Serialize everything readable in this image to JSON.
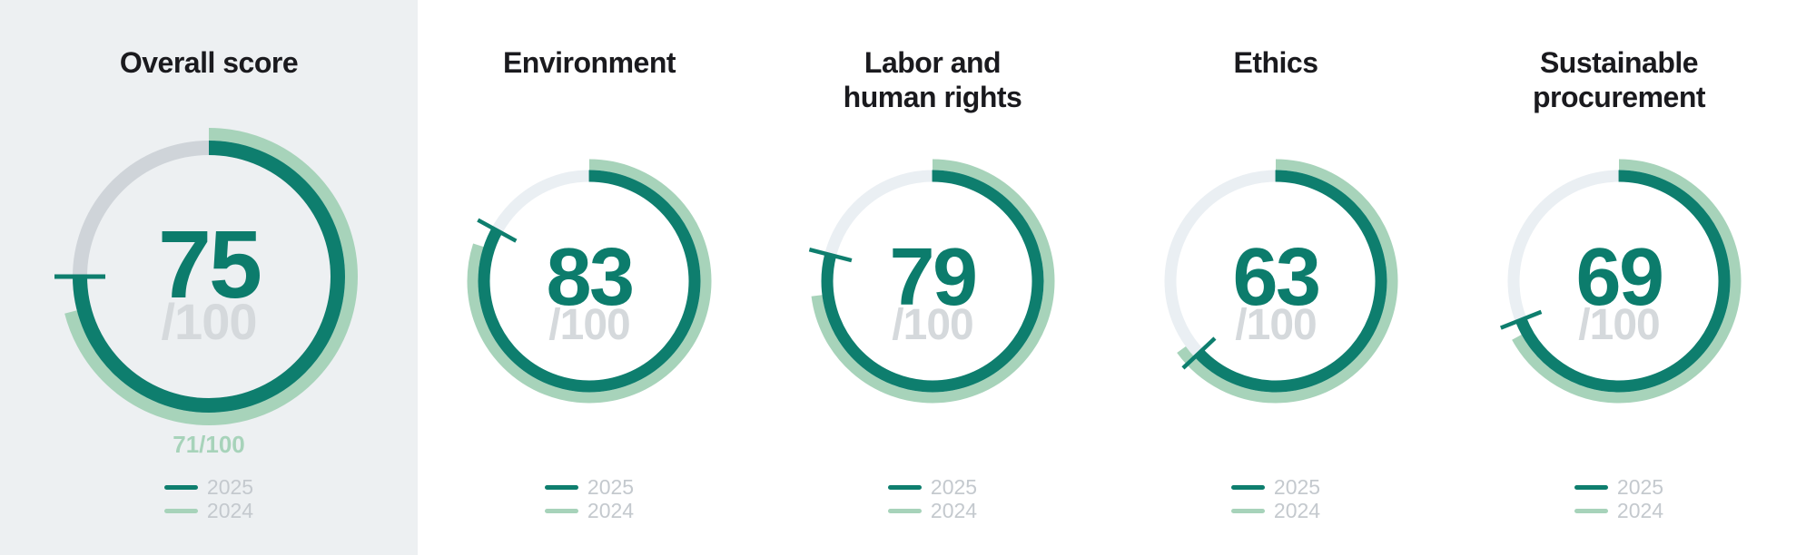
{
  "page": {
    "background": "#ffffff",
    "highlight_panel_background": "#edf0f2"
  },
  "colors": {
    "score_2025_arc": "#0e7e6e",
    "score_2024_arc": "#a7d3ba",
    "track_highlighted_panel": "#cfd4d9",
    "track_default": "#eaeff3",
    "score_number": "#0c7c6c",
    "score_denominator": "#d5d9dc",
    "previous_score_text": "#a7d3ba",
    "legend_text": "#c4c9ce",
    "title_text": "#1a1a1e"
  },
  "legend": {
    "items": [
      {
        "label": "2025",
        "color_key": "score_2025_arc"
      },
      {
        "label": "2024",
        "color_key": "score_2024_arc"
      }
    ]
  },
  "chart_data": {
    "type": "gauge",
    "max": 100,
    "direction": "clockwise",
    "start_position": "top",
    "legend_position": "bottom",
    "series_names": [
      "2025",
      "2024"
    ],
    "gauges": [
      {
        "title": "Overall score",
        "highlighted": true,
        "values": {
          "2025": 75,
          "2024": 71
        },
        "denominator": "/100",
        "previous_score_label": "71/100",
        "value_2024_estimated": false
      },
      {
        "title": "Environment",
        "highlighted": false,
        "values": {
          "2025": 83,
          "2024": 80
        },
        "denominator": "/100",
        "value_2024_estimated": true
      },
      {
        "title": "Labor and human rights",
        "highlighted": false,
        "values": {
          "2025": 79,
          "2024": 73
        },
        "denominator": "/100",
        "value_2024_estimated": true
      },
      {
        "title": "Ethics",
        "highlighted": false,
        "values": {
          "2025": 63,
          "2024": 65
        },
        "denominator": "/100",
        "value_2024_estimated": true
      },
      {
        "title": "Sustainable procurement",
        "highlighted": false,
        "values": {
          "2025": 69,
          "2024": 67
        },
        "denominator": "/100",
        "value_2024_estimated": true
      }
    ]
  }
}
